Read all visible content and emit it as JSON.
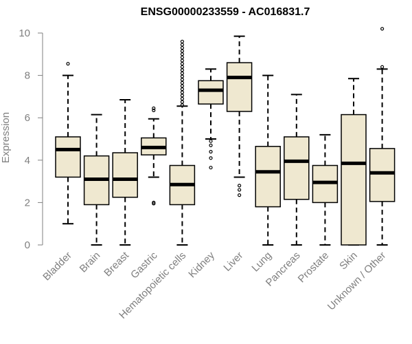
{
  "chart_data": {
    "type": "boxplot",
    "title": "ENSG00000233559 - AC016831.7",
    "xlabel": "",
    "ylabel": "Expression",
    "ylim": [
      0,
      10
    ],
    "yticks": [
      0,
      2,
      4,
      6,
      8,
      10
    ],
    "box_fill": "#efe8d0",
    "categories": [
      "Bladder",
      "Brain",
      "Breast",
      "Gastric",
      "Hematopoietic cells",
      "Kidney",
      "Liver",
      "Lung",
      "Pancreas",
      "Prostate",
      "Skin",
      "Unknown / Other"
    ],
    "boxes": [
      {
        "name": "Bladder",
        "whisker_low": 1.0,
        "q1": 3.2,
        "median": 4.5,
        "q3": 5.1,
        "whisker_high": 8.0,
        "outliers": [
          8.55
        ]
      },
      {
        "name": "Brain",
        "whisker_low": 0.0,
        "q1": 1.9,
        "median": 3.1,
        "q3": 4.2,
        "whisker_high": 6.15,
        "outliers": []
      },
      {
        "name": "Breast",
        "whisker_low": 0.0,
        "q1": 2.25,
        "median": 3.1,
        "q3": 4.35,
        "whisker_high": 6.85,
        "outliers": []
      },
      {
        "name": "Gastric",
        "whisker_low": 3.2,
        "q1": 4.25,
        "median": 4.6,
        "q3": 5.05,
        "whisker_high": 5.95,
        "outliers": [
          6.35,
          6.45,
          2.0,
          1.95
        ]
      },
      {
        "name": "Hematopoietic cells",
        "whisker_low": 0.0,
        "q1": 1.9,
        "median": 2.85,
        "q3": 3.75,
        "whisker_high": 6.55,
        "outliers": [
          6.6,
          6.75,
          6.9,
          7.05,
          7.2,
          7.35,
          7.5,
          7.65,
          7.8,
          7.95,
          8.1,
          8.25,
          8.4,
          8.55,
          8.7,
          8.85,
          9.0,
          9.15,
          9.3,
          9.45,
          9.6
        ]
      },
      {
        "name": "Kidney",
        "whisker_low": 5.0,
        "q1": 6.65,
        "median": 7.3,
        "q3": 7.75,
        "whisker_high": 8.3,
        "outliers": [
          4.9,
          4.7,
          4.4,
          4.1,
          3.65
        ]
      },
      {
        "name": "Liver",
        "whisker_low": 3.2,
        "q1": 6.3,
        "median": 7.9,
        "q3": 8.6,
        "whisker_high": 9.85,
        "outliers": [
          2.8,
          2.6,
          2.35
        ]
      },
      {
        "name": "Lung",
        "whisker_low": 0.0,
        "q1": 1.8,
        "median": 3.45,
        "q3": 4.65,
        "whisker_high": 8.0,
        "outliers": []
      },
      {
        "name": "Pancreas",
        "whisker_low": 0.0,
        "q1": 2.15,
        "median": 3.95,
        "q3": 5.1,
        "whisker_high": 7.1,
        "outliers": []
      },
      {
        "name": "Prostate",
        "whisker_low": 0.0,
        "q1": 2.0,
        "median": 2.95,
        "q3": 3.75,
        "whisker_high": 5.2,
        "outliers": []
      },
      {
        "name": "Skin",
        "whisker_low": 0.0,
        "q1": 0.0,
        "median": 3.85,
        "q3": 6.15,
        "whisker_high": 7.85,
        "outliers": []
      },
      {
        "name": "Unknown / Other",
        "whisker_low": 0.0,
        "q1": 2.05,
        "median": 3.4,
        "q3": 4.55,
        "whisker_high": 8.3,
        "outliers": [
          8.4,
          10.2
        ]
      }
    ]
  }
}
